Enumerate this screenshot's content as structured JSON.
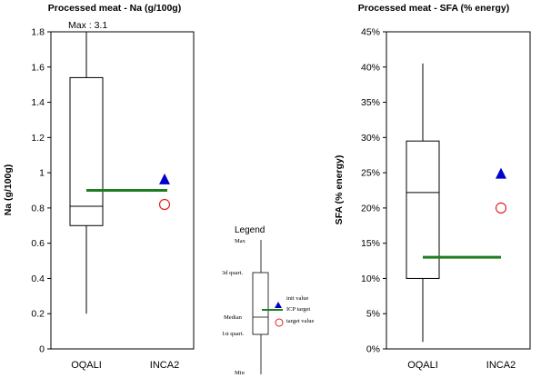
{
  "chart_data": [
    {
      "type": "box",
      "title": "Processed meat - Na (g/100g)",
      "ylabel": "Na (g/100g)",
      "ylim": [
        0,
        1.8
      ],
      "yticks": [
        0,
        0.2,
        0.4,
        0.6,
        0.8,
        1,
        1.2,
        1.4,
        1.6,
        1.8
      ],
      "ytick_labels": [
        "0",
        "0.2",
        "0.4",
        "0.6",
        "0.8",
        "1",
        "1.2",
        "1.4",
        "1.6",
        "1.8"
      ],
      "categories": [
        "OQALI",
        "INCA2"
      ],
      "box": {
        "category": "OQALI",
        "min": 0.2,
        "q1": 0.7,
        "median": 0.81,
        "q3": 1.54,
        "max": 1.8
      },
      "max_annotation": "Max : 3.1",
      "icp_target": 0.9,
      "init_value": {
        "category": "INCA2",
        "value": 0.96
      },
      "target_value": {
        "category": "INCA2",
        "value": 0.82
      }
    },
    {
      "type": "box",
      "title": "Processed meat - SFA (% energy)",
      "ylabel": "SFA (% energy)",
      "ylim": [
        0,
        45
      ],
      "yticks": [
        0,
        5,
        10,
        15,
        20,
        25,
        30,
        35,
        40,
        45
      ],
      "ytick_labels": [
        "0%",
        "5%",
        "10%",
        "15%",
        "20%",
        "25%",
        "30%",
        "35%",
        "40%",
        "45%"
      ],
      "categories": [
        "OQALI",
        "INCA2"
      ],
      "box": {
        "category": "OQALI",
        "min": 1,
        "q1": 10,
        "median": 22.2,
        "q3": 29.5,
        "max": 40.5
      },
      "icp_target": 13,
      "init_value": {
        "category": "INCA2",
        "value": 24.8
      },
      "target_value": {
        "category": "INCA2",
        "value": 20
      }
    }
  ],
  "legend": {
    "title": "Legend",
    "stat_labels": {
      "max": "Max",
      "q3": "3d quart.",
      "median": "Median",
      "q1": "1st quart.",
      "min": "Min"
    },
    "init_value": "init value",
    "icp_target": "ICP target",
    "target_value": "target value"
  },
  "colors": {
    "icp_target": "#1e7d1e",
    "init_value": "#0000cc",
    "target_value": "#e02020",
    "init_label": "#0000cc",
    "icp_label": "#1e7d1e",
    "target_label": "#e02020"
  }
}
